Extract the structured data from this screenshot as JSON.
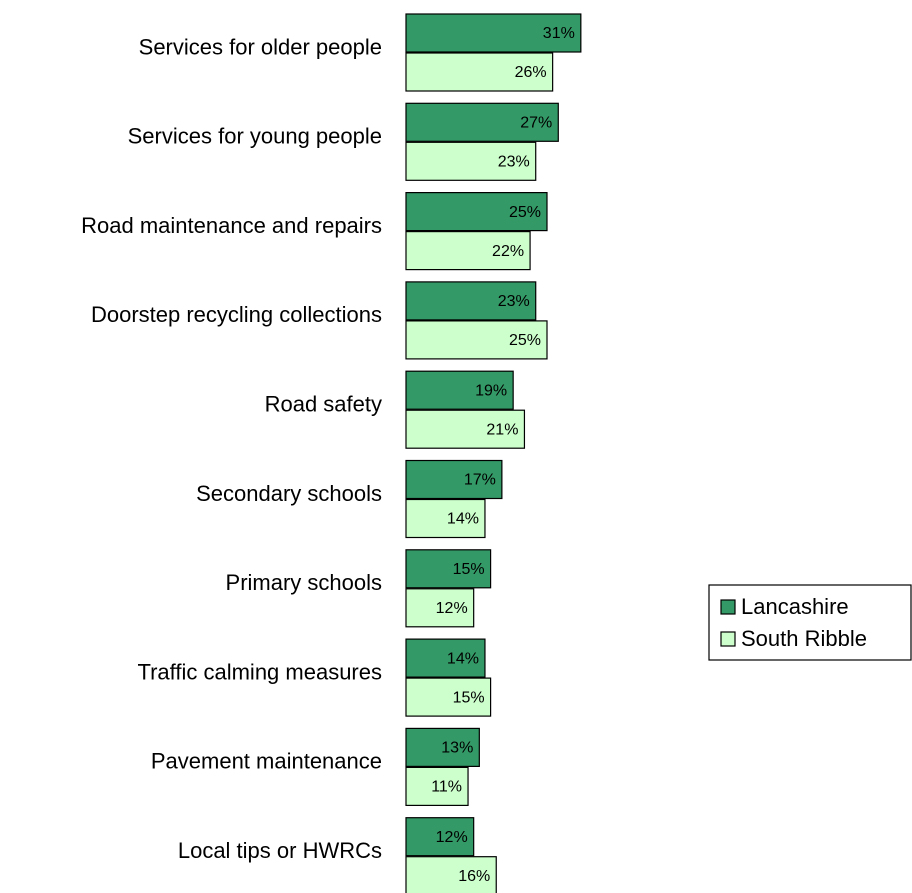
{
  "chart_data": {
    "type": "bar",
    "orientation": "horizontal",
    "title": "",
    "xlabel": "",
    "ylabel": "",
    "xlim": [
      0,
      40
    ],
    "grid": false,
    "legend_position": "right",
    "value_suffix": "%",
    "categories": [
      "Services for older people",
      "Services for young people",
      "Road maintenance and repairs",
      "Doorstep recycling collections",
      "Road safety",
      "Secondary schools",
      "Primary schools",
      "Traffic calming measures",
      "Pavement maintenance",
      "Local tips or HWRCs"
    ],
    "series": [
      {
        "name": "Lancashire",
        "color": "#339966",
        "values": [
          31,
          27,
          25,
          23,
          19,
          17,
          15,
          14,
          13,
          12
        ]
      },
      {
        "name": "South Ribble",
        "color": "#ccffcc",
        "values": [
          26,
          23,
          22,
          25,
          21,
          14,
          12,
          15,
          11,
          16
        ]
      }
    ]
  }
}
